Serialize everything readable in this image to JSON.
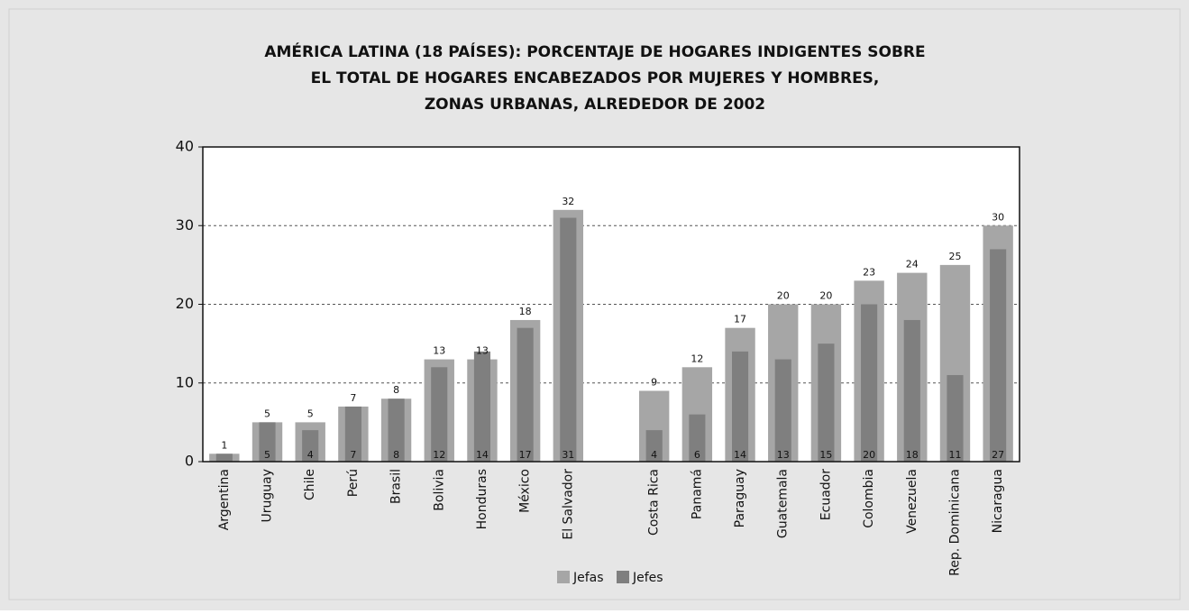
{
  "chart_data": {
    "type": "bar",
    "title": [
      "AMÉRICA LATINA (18 PAÍSES): PORCENTAJE DE HOGARES INDIGENTES SOBRE",
      "EL TOTAL DE HOGARES ENCABEZADOS POR MUJERES Y HOMBRES,",
      "ZONAS URBANAS, ALREDEDOR DE 2002"
    ],
    "categories": [
      "Argentina",
      "Uruguay",
      "Chile",
      "Perú",
      "Brasil",
      "Bolivia",
      "Honduras",
      "México",
      "El Salvador",
      null,
      "Costa Rica",
      "Panamá",
      "Paraguay",
      "Guatemala",
      "Ecuador",
      "Colombia",
      "Venezuela",
      "Rep. Dominicana",
      "Nicaragua"
    ],
    "series": [
      {
        "name": "Jefas",
        "color": "#a6a6a6",
        "values": [
          1,
          5,
          5,
          7,
          8,
          13,
          13,
          18,
          32,
          null,
          9,
          12,
          17,
          20,
          20,
          23,
          24,
          25,
          30
        ]
      },
      {
        "name": "Jefes",
        "color": "#7f7f7f",
        "values": [
          1,
          5,
          4,
          7,
          8,
          12,
          14,
          17,
          31,
          null,
          4,
          6,
          14,
          13,
          15,
          20,
          18,
          11,
          27
        ]
      }
    ],
    "ylim": [
      0,
      40
    ],
    "yticks": [
      0,
      10,
      20,
      30,
      40
    ],
    "grid": true,
    "legend": "bottom"
  }
}
